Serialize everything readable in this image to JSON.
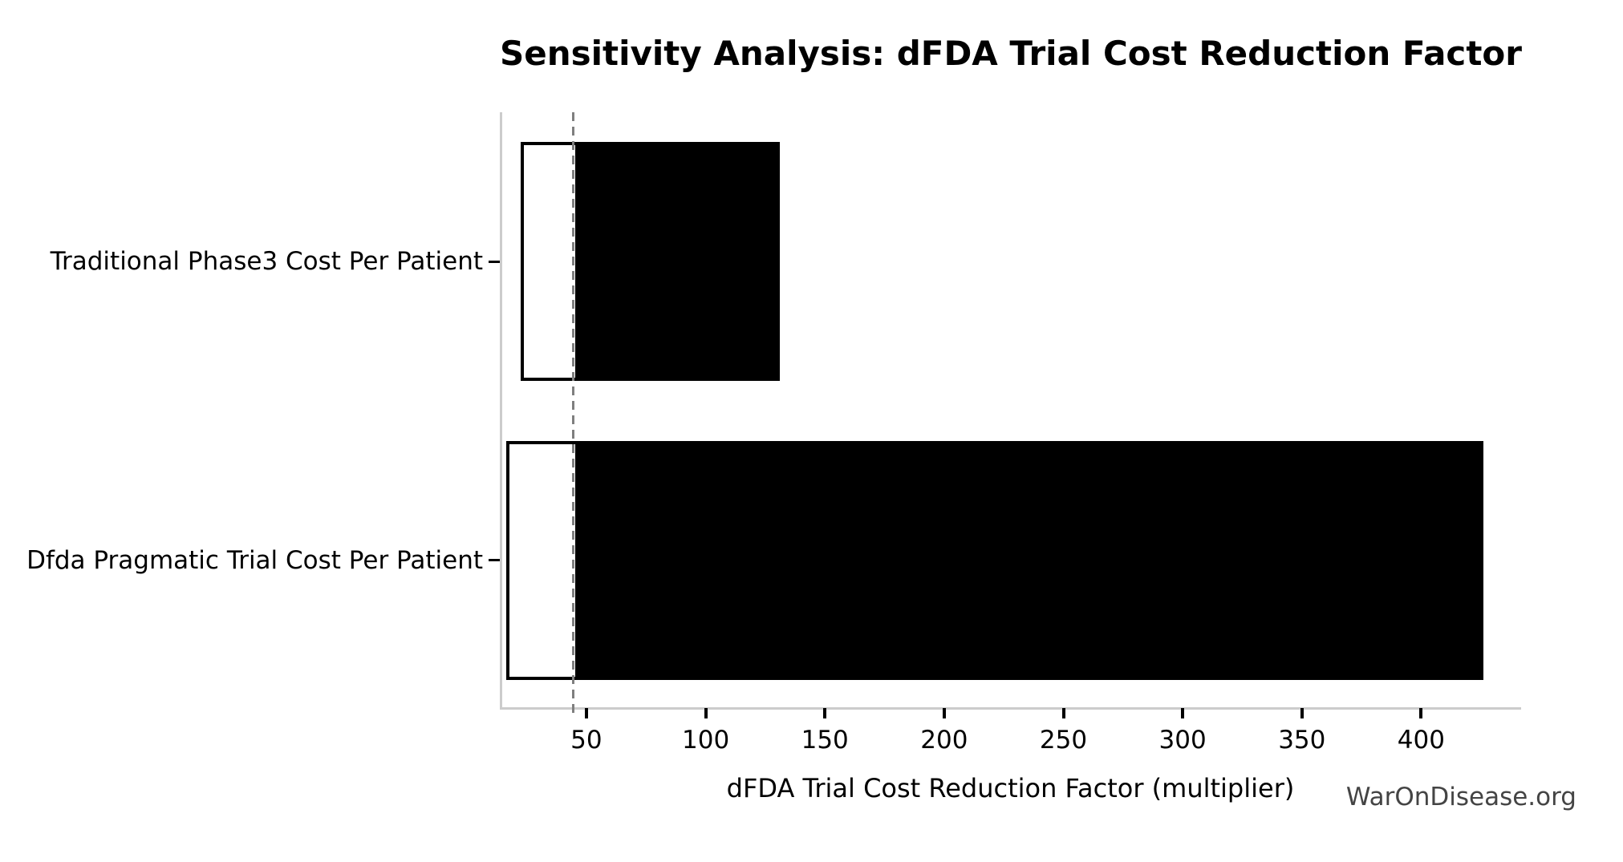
{
  "chart_data": {
    "type": "bar",
    "subtype": "tornado-sensitivity",
    "orientation": "horizontal",
    "title": "Sensitivity Analysis: dFDA Trial Cost Reduction Factor",
    "xlabel": "dFDA Trial Cost Reduction Factor (multiplier)",
    "ylabel": "",
    "categories": [
      "Traditional Phase3 Cost Per Patient",
      "Dfda Pragmatic Trial Cost Per Patient"
    ],
    "bars": [
      {
        "category": "Traditional Phase3 Cost Per Patient",
        "low": 21.5,
        "high": 130
      },
      {
        "category": "Dfda Pragmatic Trial Cost Per Patient",
        "low": 15.3,
        "high": 425
      }
    ],
    "baseline_value": 44.4,
    "x_ticks": [
      50,
      100,
      150,
      200,
      250,
      300,
      350,
      400
    ],
    "x_axis_range": [
      13.7,
      441.9
    ],
    "grid": false,
    "legend": "none",
    "colors": {
      "bar_fill": "#000000",
      "bar_edge": "#000000",
      "bar_low_fill": "#ffffff",
      "baseline_line": "#7f7f7f",
      "spine": "#cccccc",
      "tick_mark": "#000000",
      "text": "#000000",
      "watermark_text": "#444444",
      "background": "#ffffff"
    }
  },
  "watermark": "WarOnDisease.org"
}
